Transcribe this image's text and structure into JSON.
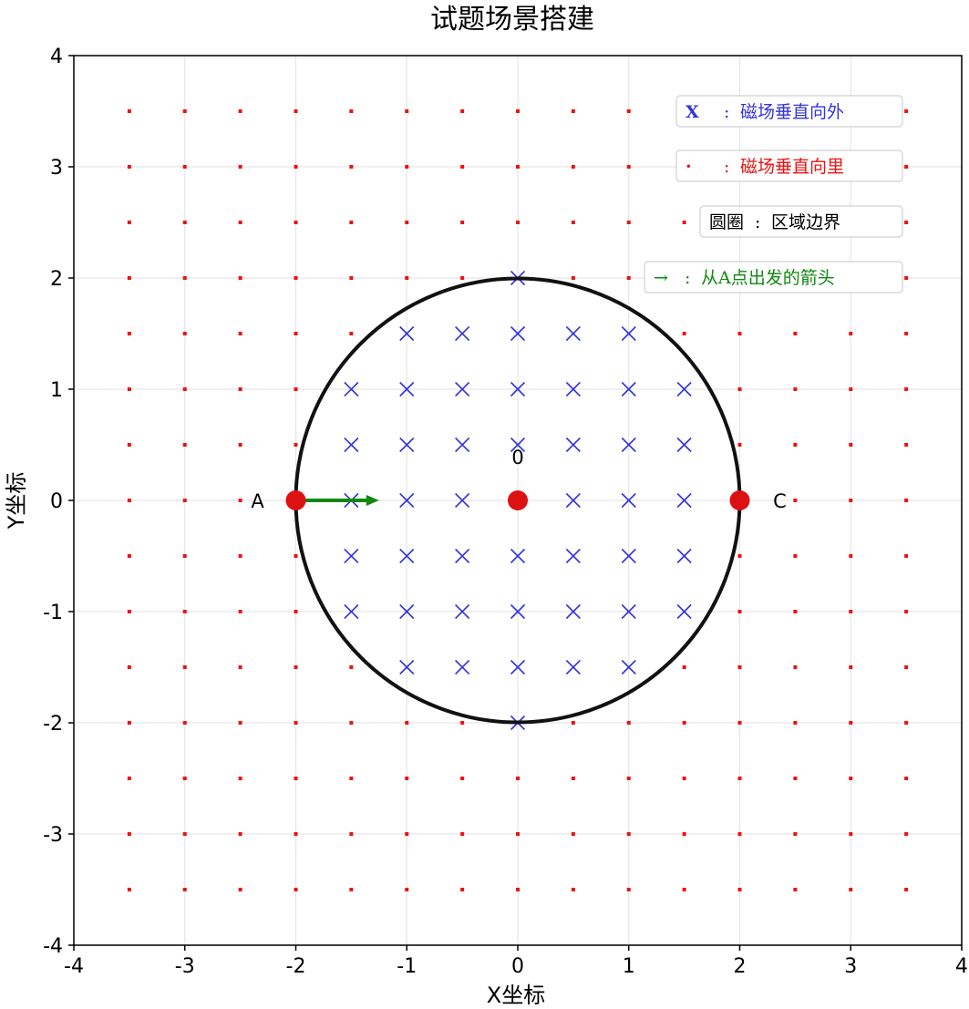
{
  "chart_data": {
    "type": "scatter",
    "title": "试题场景搭建",
    "xlabel": "X坐标",
    "ylabel": "Y坐标",
    "xlim": [
      -4,
      4
    ],
    "ylim": [
      -4,
      4
    ],
    "xticks": [
      -4,
      -3,
      -2,
      -1,
      0,
      1,
      2,
      3,
      4
    ],
    "yticks": [
      -4,
      -3,
      -2,
      -1,
      0,
      1,
      2,
      3,
      4
    ],
    "grid": true,
    "legend_position": "top-right",
    "colors": {
      "outward": "#3333dd",
      "inward": "#ee1111",
      "boundary": "#111111",
      "arrow": "#118811",
      "point": "#dd1111",
      "grid": "#e6e6e6"
    },
    "field_grid": {
      "x": [
        -3.5,
        -3,
        -2.5,
        -2,
        -1.5,
        -1,
        -0.5,
        0,
        0.5,
        1,
        1.5,
        2,
        2.5,
        3,
        3.5
      ],
      "y": [
        -3.5,
        -3,
        -2.5,
        -2,
        -1.5,
        -1,
        -0.5,
        0,
        0.5,
        1,
        1.5,
        2,
        2.5,
        3,
        3.5
      ]
    },
    "circle": {
      "center": [
        0,
        0
      ],
      "radius": 2
    },
    "points": [
      {
        "label": "A",
        "x": -2,
        "y": 0
      },
      {
        "label": "0",
        "x": 0,
        "y": 0
      },
      {
        "label": "C",
        "x": 2,
        "y": 0
      }
    ],
    "arrow": {
      "from": [
        -2,
        0
      ],
      "to": [
        -1.25,
        0
      ]
    },
    "legend": [
      {
        "symbol": "X",
        "sep": ":",
        "text": "磁场垂直向外",
        "color": "#3333dd"
      },
      {
        "symbol": "·",
        "sep": ":",
        "text": "磁场垂直向里",
        "color": "#ee1111"
      },
      {
        "symbol": "圆圈",
        "sep": ":",
        "text": "区域边界",
        "color": "#000000"
      },
      {
        "symbol": "→",
        "sep": ":",
        "text": "从A点出发的箭头",
        "color": "#118811"
      }
    ]
  }
}
